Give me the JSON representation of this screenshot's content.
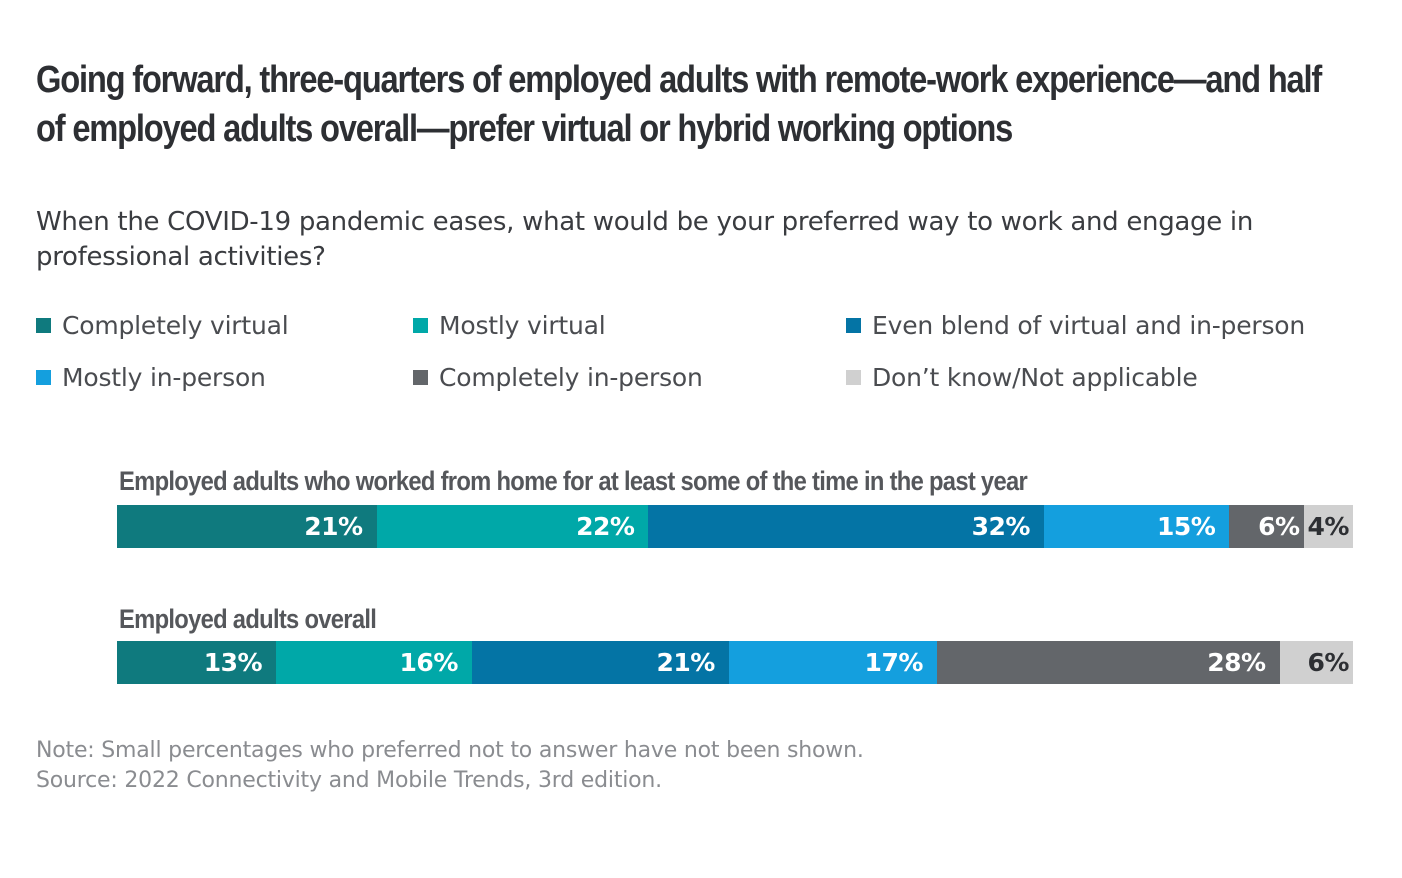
{
  "title": "Going forward, three-quarters of employed adults with remote-work experience—and half of employed adults overall—prefer virtual or hybrid working options",
  "subtitle": "When the COVID-19 pandemic eases, what would be your preferred way to work and engage in professional activities?",
  "legend": [
    {
      "label": "Completely virtual",
      "color": "#0f7a7e"
    },
    {
      "label": "Mostly virtual",
      "color": "#00a8a8"
    },
    {
      "label": "Even blend of virtual and in-person",
      "color": "#0474a5"
    },
    {
      "label": "Mostly in-person",
      "color": "#149fde"
    },
    {
      "label": "Completely in-person",
      "color": "#63666a"
    },
    {
      "label": "Don’t know/Not applicable",
      "color": "#d0d0d0"
    }
  ],
  "chart_data": {
    "type": "bar",
    "orientation": "horizontal-stacked",
    "title": "Going forward, three-quarters of employed adults with remote-work experience—and half of employed adults overall—prefer virtual or hybrid working options",
    "categories": [
      "Employed adults who worked from home for at least some of the time in the past year",
      "Employed adults overall"
    ],
    "series": [
      {
        "name": "Completely virtual",
        "values": [
          21,
          13
        ]
      },
      {
        "name": "Mostly virtual",
        "values": [
          22,
          16
        ]
      },
      {
        "name": "Even blend of virtual and in-person",
        "values": [
          32,
          21
        ]
      },
      {
        "name": "Mostly in-person",
        "values": [
          15,
          17
        ]
      },
      {
        "name": "Completely in-person",
        "values": [
          6,
          28
        ]
      },
      {
        "name": "Don’t know/Not applicable",
        "values": [
          4,
          6
        ]
      }
    ],
    "value_labels": [
      [
        "21%",
        "22%",
        "32%",
        "15%",
        "6%",
        "4%"
      ],
      [
        "13%",
        "16%",
        "21%",
        "17%",
        "28%",
        "6%"
      ]
    ],
    "unit": "%",
    "legend_position": "top"
  },
  "notes": {
    "note": "Note: Small percentages who preferred not to answer have not been shown.",
    "source": "Source: 2022 Connectivity and Mobile Trends, 3rd edition."
  }
}
